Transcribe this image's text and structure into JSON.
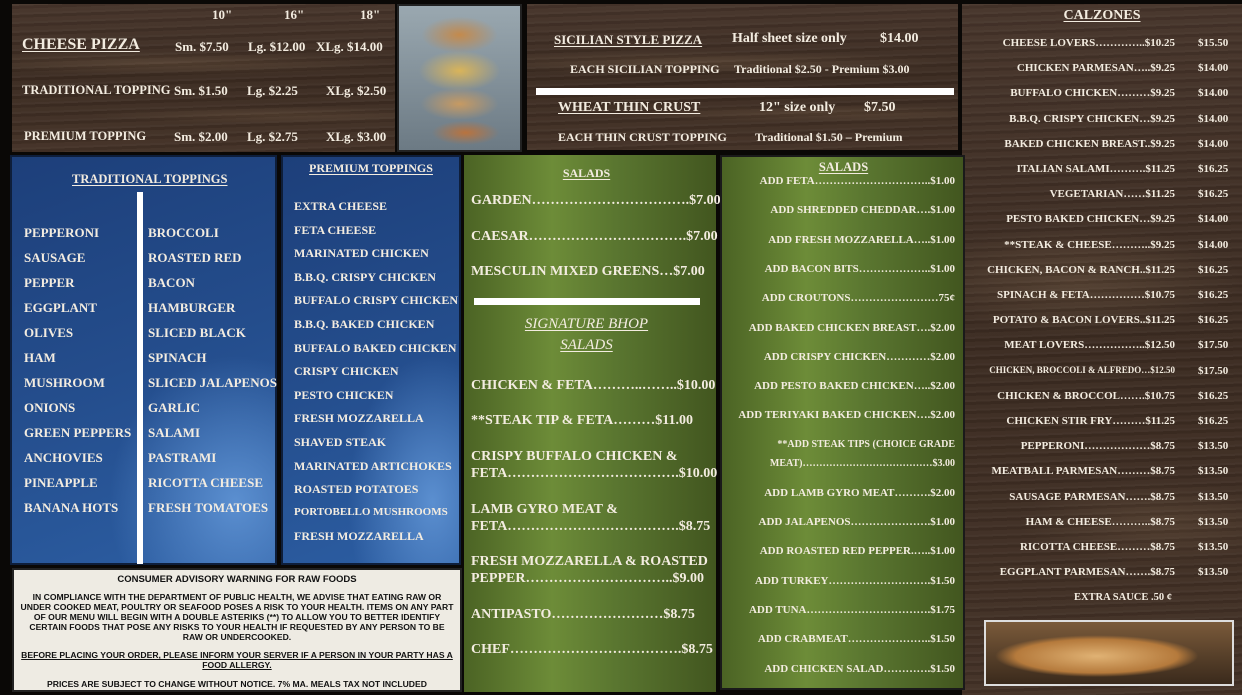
{
  "pizza": {
    "sizes": [
      "10\"",
      "16\"",
      "18\""
    ],
    "rows": [
      {
        "label": "CHEESE PIZZA",
        "sm": "Sm. $7.50",
        "lg": "Lg. $12.00",
        "xlg": "XLg. $14.00"
      },
      {
        "label": "TRADITIONAL TOPPING",
        "sm": "Sm. $1.50",
        "lg": "Lg. $2.25",
        "xlg": "XLg. $2.50"
      },
      {
        "label": "PREMIUM TOPPING",
        "sm": "Sm. $2.00",
        "lg": "Lg. $2.75",
        "xlg": "XLg. $3.00"
      }
    ]
  },
  "specialty": {
    "sicilian_label": "SICILIAN STYLE PIZZA",
    "sicilian_size": "Half sheet size only",
    "sicilian_price": "$14.00",
    "sicilian_topping_label": "EACH SICILIAN TOPPING",
    "sicilian_topping_price": "Traditional $2.50 - Premium $3.00",
    "wheat_label": "WHEAT THIN CRUST",
    "wheat_size": "12\" size only",
    "wheat_price": "$7.50",
    "wheat_topping_label": "EACH THIN CRUST TOPPING",
    "wheat_topping_price": "Traditional $1.50 – Premium"
  },
  "traditional_toppings": {
    "title": "TRADITIONAL TOPPINGS",
    "col1": [
      "PEPPERONI",
      "SAUSAGE",
      "PEPPER",
      "EGGPLANT",
      "OLIVES",
      "HAM",
      "MUSHROOM",
      "ONIONS",
      "GREEN PEPPERS",
      "ANCHOVIES",
      "PINEAPPLE",
      "BANANA HOTS"
    ],
    "col2": [
      "BROCCOLI",
      "ROASTED RED",
      "BACON",
      "HAMBURGER",
      "SLICED BLACK",
      "SPINACH",
      "SLICED JALAPENOS",
      "GARLIC",
      "SALAMI",
      "PASTRAMI",
      "RICOTTA CHEESE",
      "FRESH TOMATOES"
    ]
  },
  "premium_toppings": {
    "title": "PREMIUM TOPPINGS",
    "items": [
      "EXTRA CHEESE",
      "FETA CHEESE",
      "MARINATED CHICKEN",
      "B.B.Q. CRISPY CHICKEN",
      "BUFFALO CRISPY CHICKEN",
      "B.B.Q.  BAKED CHICKEN",
      "BUFFALO BAKED CHICKEN",
      "CRISPY CHICKEN",
      "PESTO CHICKEN",
      "FRESH MOZZARELLA",
      "SHAVED STEAK",
      "MARINATED ARTICHOKES",
      "ROASTED POTATOES",
      "PORTOBELLO MUSHROOMS",
      "FRESH MOZZARELLA"
    ]
  },
  "salads": {
    "title": "SALADS",
    "basic": [
      "GARDEN…………………………….$7.00",
      "CAESAR…………………………….$7.00",
      "MESCULIN MIXED GREENS…$7.00"
    ],
    "signature_title_1": "SIGNATURE BHOP",
    "signature_title_2": "SALADS",
    "signature": [
      [
        "CHICKEN & FETA………..……..$10.00"
      ],
      [
        "**STEAK TIP & FETA………$11.00"
      ],
      [
        "CRISPY BUFFALO CHICKEN &",
        "FETA……………………………….$10.00"
      ],
      [
        "LAMB GYRO MEAT &",
        "FETA……………………………….$8.75"
      ],
      [
        "FRESH MOZZARELLA & ROASTED",
        "PEPPER…………………………..$9.00"
      ],
      [
        "ANTIPASTO……………………$8.75"
      ],
      [
        "CHEF……………………………….$8.75"
      ]
    ]
  },
  "salad_addons": {
    "title": "SALADS",
    "items": [
      [
        "ADD FETA…………………………..$1.00"
      ],
      [
        "ADD SHREDDED CHEDDAR….$1.00"
      ],
      [
        "ADD FRESH MOZZARELLA…..$1.00"
      ],
      [
        "ADD BACON BITS………………..$1.00"
      ],
      [
        "ADD CROUTONS……………………75¢"
      ],
      [
        "ADD BAKED CHICKEN BREAST….$2.00"
      ],
      [
        "ADD CRISPY CHICKEN…………$2.00"
      ],
      [
        "ADD PESTO BAKED CHICKEN…..$2.00"
      ],
      [
        "ADD TERIYAKI BAKED CHICKEN….$2.00"
      ],
      [
        "**ADD STEAK TIPS (CHOICE GRADE",
        "MEAT)…………………………………$3.00"
      ],
      [
        "ADD LAMB GYRO MEAT……….$2.00"
      ],
      [
        "ADD JALAPENOS………………….$1.00"
      ],
      [
        "ADD ROASTED RED PEPPER.…..$1.00"
      ],
      [
        "ADD TURKEY……………………….$1.50"
      ],
      [
        "ADD TUNA…………………………….$1.75"
      ],
      [
        "ADD CRABMEAT…………………..$1.50"
      ],
      [
        "ADD CHICKEN SALAD………….$1.50"
      ]
    ]
  },
  "calzones": {
    "title": "CALZONES",
    "items": [
      {
        "name": "CHEESE LOVERS…………..$10.25",
        "large": "$15.50"
      },
      {
        "name": "CHICKEN PARMESAN…..$9.25",
        "large": "$14.00"
      },
      {
        "name": "BUFFALO CHICKEN………$9.25",
        "large": "$14.00"
      },
      {
        "name": "B.B.Q. CRISPY CHICKEN…$9.25",
        "large": "$14.00"
      },
      {
        "name": "BAKED CHICKEN BREAST..$9.25",
        "large": "$14.00"
      },
      {
        "name": "ITALIAN SALAMI……….$11.25",
        "large": "$16.25"
      },
      {
        "name": "VEGETARIAN……$11.25",
        "large": "$16.25"
      },
      {
        "name": "PESTO BAKED CHICKEN…$9.25",
        "large": "$14.00"
      },
      {
        "name": "**STEAK & CHEESE………..$9.25",
        "large": "$14.00"
      },
      {
        "name": "CHICKEN, BACON & RANCH..$11.25",
        "large": "$16.25"
      },
      {
        "name": "SPINACH & FETA……………$10.75",
        "large": "$16.25"
      },
      {
        "name": "POTATO & BACON LOVERS..$11.25",
        "large": "$16.25"
      },
      {
        "name": "MEAT LOVERS……………..$12.50",
        "large": "$17.50"
      },
      {
        "name": "CHICKEN, BROCCOLI & ALFREDO…$12.50",
        "large": "$17.50",
        "small": true
      },
      {
        "name": "CHICKEN & BROCCOL…….$10.75",
        "large": "$16.25"
      },
      {
        "name": "CHICKEN STIR FRY………$11.25",
        "large": "$16.25"
      },
      {
        "name": "PEPPERONI………………$8.75",
        "large": "$13.50"
      },
      {
        "name": "MEATBALL PARMESAN………$8.75",
        "large": "$13.50"
      },
      {
        "name": "SAUSAGE PARMESAN…….$8.75",
        "large": "$13.50"
      },
      {
        "name": "HAM & CHEESE………..$8.75",
        "large": "$13.50"
      },
      {
        "name": "RICOTTA CHEESE………$8.75",
        "large": "$13.50"
      },
      {
        "name": "EGGPLANT PARMESAN…….$8.75",
        "large": "$13.50"
      }
    ],
    "extra_sauce": "EXTRA SAUCE  .50 ¢"
  },
  "advisory": {
    "title": "CONSUMER ADVISORY WARNING FOR RAW FOODS",
    "body": "IN COMPLIANCE WITH THE DEPARTMENT OF PUBLIC HEALTH, WE ADVISE THAT EATING RAW OR UNDER COOKED MEAT, POULTRY OR SEAFOOD POSES A RISK TO YOUR HEALTH. ITEMS ON ANY PART OF OUR MENU WILL BEGIN WITH A DOUBLE ASTERIKS (**) TO ALLOW YOU TO BETTER IDENTIFY CERTAIN FOODS THAT POSE ANY RISKS TO YOUR HEALTH IF REQUESTED BY ANY PERSON TO BE RAW OR UNDERCOOKED.",
    "allergy": "BEFORE PLACING YOUR ORDER, PLEASE INFORM YOUR SERVER IF A PERSON IN YOUR PARTY HAS A FOOD ALLERGY.",
    "prices": "PRICES ARE SUBJECT TO CHANGE WITHOUT NOTICE.  7% MA. MEALS TAX NOT INCLUDED"
  },
  "colors": {
    "wood": "#3f2e23",
    "blue": "#244d8c",
    "green": "#5f7c30",
    "advisory_bg": "#eeebe3"
  },
  "images": {
    "pizza_stack": "pizza-stack-photo",
    "calzone": "calzone-photo"
  }
}
